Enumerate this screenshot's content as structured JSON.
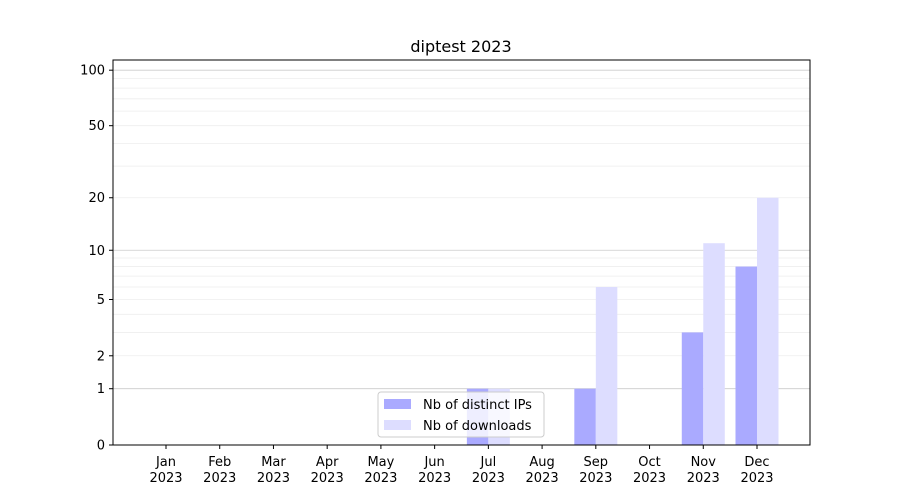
{
  "chart_data": {
    "type": "bar",
    "title": "diptest 2023",
    "xlabel": "",
    "ylabel": "",
    "yscale": "log(1+y)",
    "ylim": [
      0,
      113
    ],
    "grid": true,
    "legend_placement": "bottom-center",
    "categories": [
      "Jan\n2023",
      "Feb\n2023",
      "Mar\n2023",
      "Apr\n2023",
      "May\n2023",
      "Jun\n2023",
      "Jul\n2023",
      "Aug\n2023",
      "Sep\n2023",
      "Oct\n2023",
      "Nov\n2023",
      "Dec\n2023"
    ],
    "yticks": [
      0,
      1,
      2,
      5,
      10,
      20,
      50,
      100
    ],
    "series": [
      {
        "name": "Nb of distinct IPs",
        "color": "#aaaaff",
        "values": [
          0,
          0,
          0,
          0,
          0,
          0,
          1,
          0,
          1,
          0,
          3,
          8
        ]
      },
      {
        "name": "Nb of downloads",
        "color": "#ddddff",
        "values": [
          0,
          0,
          0,
          0,
          0,
          0,
          1,
          0,
          6,
          0,
          11,
          20
        ]
      }
    ]
  }
}
